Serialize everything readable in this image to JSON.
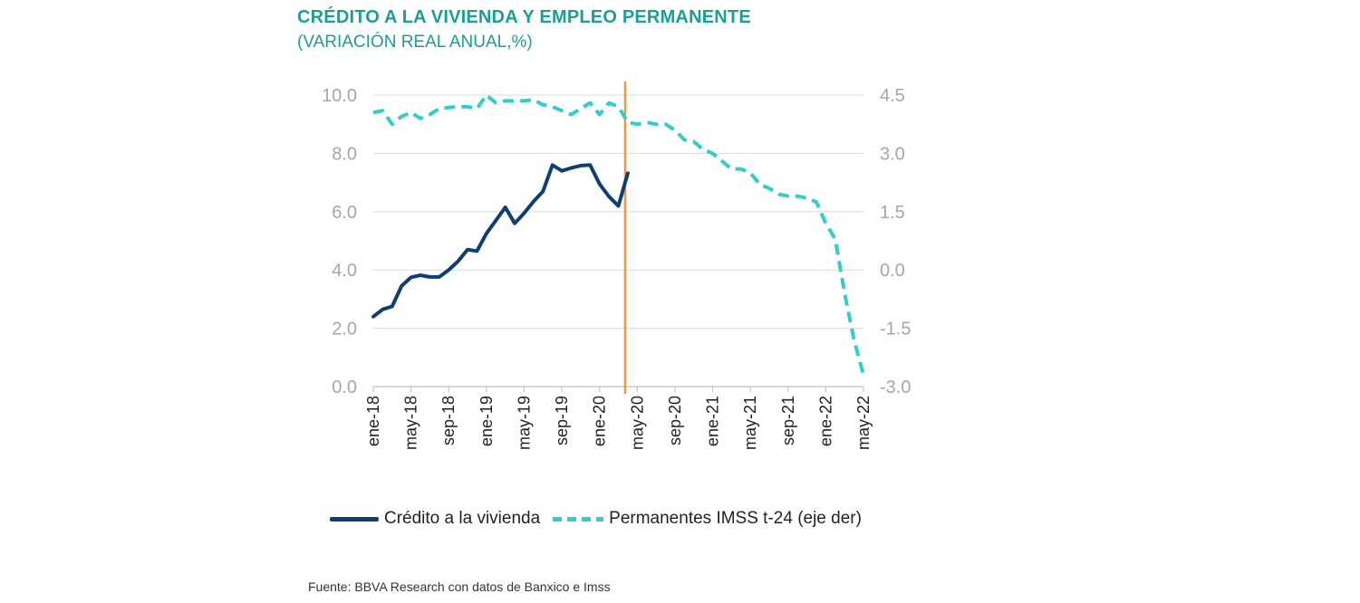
{
  "chart_data": {
    "type": "line",
    "title": "CRÉDITO A LA VIVIENDA Y EMPLEO PERMANENTE",
    "subtitle": "(VARIACIÓN REAL ANUAL,%)",
    "x_tick_labels": [
      "ene-18",
      "may-18",
      "sep-18",
      "ene-19",
      "may-19",
      "sep-19",
      "ene-20",
      "may-20",
      "sep-20",
      "ene-21",
      "may-21",
      "sep-21",
      "ene-22",
      "may-22"
    ],
    "x_range": [
      "ene-18",
      "may-22"
    ],
    "y_left": {
      "ylim": [
        0,
        10
      ],
      "ticks": [
        "0.0",
        "2.0",
        "4.0",
        "6.0",
        "8.0",
        "10.0"
      ]
    },
    "y_right": {
      "ylim": [
        -3,
        4.5
      ],
      "ticks": [
        "-3.0",
        "-1.5",
        "0.0",
        "1.5",
        "3.0",
        "4.5"
      ]
    },
    "grid": true,
    "legend_position": "bottom",
    "series": [
      {
        "name": "Crédito a la vivienda",
        "axis": "left",
        "style": "solid",
        "color": "#0e3f74",
        "x": [
          "ene-18",
          "feb-18",
          "mar-18",
          "abr-18",
          "may-18",
          "jun-18",
          "jul-18",
          "ago-18",
          "sep-18",
          "oct-18",
          "nov-18",
          "dic-18",
          "ene-19",
          "feb-19",
          "mar-19",
          "abr-19",
          "may-19",
          "jun-19",
          "jul-19",
          "ago-19",
          "sep-19",
          "oct-19",
          "nov-19",
          "dic-19",
          "ene-20",
          "feb-20",
          "mar-20",
          "abr-20"
        ],
        "values": [
          2.4,
          2.65,
          2.75,
          3.45,
          3.75,
          3.82,
          3.76,
          3.76,
          4.0,
          4.3,
          4.7,
          4.65,
          5.25,
          5.7,
          6.15,
          5.6,
          5.95,
          6.35,
          6.7,
          7.6,
          7.4,
          7.5,
          7.58,
          7.6,
          6.95,
          6.52,
          6.2,
          7.32
        ]
      },
      {
        "name": "Permanentes IMSS t-24 (eje der)",
        "axis": "right",
        "style": "dashed",
        "color": "#33cccc",
        "x": [
          "ene-18",
          "feb-18",
          "mar-18",
          "abr-18",
          "may-18",
          "jun-18",
          "jul-18",
          "ago-18",
          "sep-18",
          "oct-18",
          "nov-18",
          "dic-18",
          "ene-19",
          "feb-19",
          "mar-19",
          "abr-19",
          "may-19",
          "jun-19",
          "jul-19",
          "ago-19",
          "sep-19",
          "oct-19",
          "nov-19",
          "dic-19",
          "ene-20",
          "feb-20",
          "mar-20",
          "abr-20",
          "may-20",
          "jun-20",
          "jul-20",
          "ago-20",
          "sep-20",
          "oct-20",
          "nov-20",
          "dic-20",
          "ene-21",
          "feb-21",
          "mar-21",
          "abr-21",
          "may-21",
          "jun-21",
          "jul-21",
          "ago-21",
          "sep-21",
          "oct-21",
          "nov-21",
          "dic-21",
          "ene-22",
          "feb-22",
          "mar-22",
          "abr-22",
          "may-22"
        ],
        "values": [
          4.05,
          4.1,
          3.75,
          3.95,
          4.05,
          3.9,
          4.0,
          4.15,
          4.18,
          4.2,
          4.2,
          4.15,
          4.5,
          4.3,
          4.35,
          4.35,
          4.35,
          4.38,
          4.25,
          4.2,
          4.1,
          4.0,
          4.15,
          4.3,
          4.0,
          4.3,
          4.2,
          3.8,
          3.75,
          3.8,
          3.75,
          3.75,
          3.6,
          3.35,
          3.3,
          3.1,
          3.0,
          2.8,
          2.6,
          2.6,
          2.5,
          2.2,
          2.1,
          1.95,
          1.9,
          1.9,
          1.85,
          1.75,
          1.2,
          0.8,
          -0.6,
          -1.8,
          -2.7
        ]
      }
    ],
    "annotations": [
      {
        "type": "vertical-line",
        "x": "abr-20",
        "color": "#f0954a"
      }
    ]
  },
  "source": "Fuente: BBVA Research con datos de Banxico e Imss"
}
